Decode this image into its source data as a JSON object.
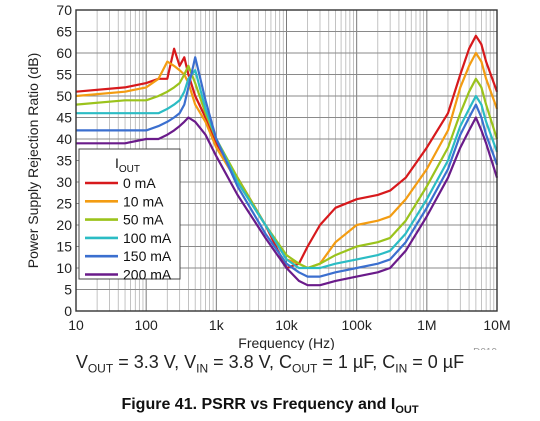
{
  "chart_data": {
    "type": "line",
    "x_scale": "log",
    "xlim": [
      10,
      10000000
    ],
    "ylim": [
      0,
      70
    ],
    "x_ticks": [
      "10",
      "100",
      "1k",
      "10k",
      "100k",
      "1M",
      "10M"
    ],
    "y_ticks": [
      "0",
      "5",
      "10",
      "15",
      "20",
      "25",
      "30",
      "35",
      "40",
      "45",
      "50",
      "55",
      "60",
      "65",
      "70"
    ],
    "xlabel": "Frequency (Hz)",
    "ylabel": "Power Supply Rejection Ratio (dB)",
    "grid": true,
    "legend_position": "left",
    "legend_title": "IOUT",
    "legend_title_main": "I",
    "legend_title_sub": "OUT",
    "code": "D019",
    "series": [
      {
        "name": "0 mA",
        "color": "#d7191c",
        "x": [
          10,
          50,
          100,
          150,
          200,
          250,
          300,
          350,
          400,
          500,
          700,
          1000,
          2000,
          5000,
          10000,
          15000,
          20000,
          30000,
          50000,
          100000,
          200000,
          300000,
          500000,
          1000000,
          2000000,
          3000000,
          4000000,
          5000000,
          6000000,
          7000000,
          10000000
        ],
        "y": [
          51,
          52,
          53,
          54,
          54,
          61,
          57,
          59,
          55,
          50,
          45,
          39,
          31,
          20,
          10,
          11,
          15,
          20,
          24,
          26,
          27,
          28,
          31,
          38,
          46,
          55,
          61,
          64,
          62,
          58,
          51
        ]
      },
      {
        "name": "10 mA",
        "color": "#f39c12",
        "x": [
          10,
          50,
          100,
          150,
          200,
          250,
          300,
          350,
          400,
          500,
          700,
          1000,
          2000,
          5000,
          10000,
          15000,
          20000,
          30000,
          50000,
          100000,
          200000,
          300000,
          500000,
          1000000,
          2000000,
          3000000,
          4000000,
          5000000,
          6000000,
          7000000,
          10000000
        ],
        "y": [
          50,
          51,
          52,
          54,
          58,
          57,
          56,
          55,
          53,
          48,
          44,
          38,
          30,
          20,
          12,
          11,
          10,
          11,
          16,
          20,
          21,
          22,
          26,
          33,
          42,
          52,
          57,
          60,
          58,
          54,
          47
        ]
      },
      {
        "name": "50 mA",
        "color": "#9bc31c",
        "x": [
          10,
          50,
          100,
          150,
          200,
          250,
          300,
          350,
          400,
          500,
          700,
          1000,
          2000,
          5000,
          10000,
          15000,
          20000,
          30000,
          50000,
          100000,
          200000,
          300000,
          500000,
          1000000,
          2000000,
          3000000,
          4000000,
          5000000,
          6000000,
          7000000,
          10000000
        ],
        "y": [
          48,
          49,
          49,
          50,
          51,
          52,
          53,
          55,
          57,
          53,
          46,
          40,
          31,
          20,
          13,
          11,
          10,
          11,
          13,
          15,
          16,
          17,
          21,
          29,
          38,
          46,
          51,
          54,
          52,
          48,
          40
        ]
      },
      {
        "name": "100 mA",
        "color": "#2bbcc4",
        "x": [
          10,
          50,
          100,
          150,
          200,
          250,
          300,
          350,
          400,
          500,
          700,
          1000,
          2000,
          5000,
          10000,
          15000,
          20000,
          30000,
          50000,
          100000,
          200000,
          300000,
          500000,
          1000000,
          2000000,
          3000000,
          4000000,
          5000000,
          6000000,
          7000000,
          10000000
        ],
        "y": [
          46,
          46,
          46,
          46,
          47,
          48,
          49,
          51,
          54,
          56,
          47,
          40,
          30,
          20,
          12,
          10,
          10,
          10,
          11,
          12,
          13,
          14,
          18,
          26,
          35,
          43,
          47,
          50,
          48,
          44,
          37
        ]
      },
      {
        "name": "150 mA",
        "color": "#3b6fcf",
        "x": [
          10,
          50,
          100,
          150,
          200,
          250,
          300,
          350,
          400,
          500,
          700,
          1000,
          2000,
          5000,
          10000,
          15000,
          20000,
          30000,
          50000,
          100000,
          200000,
          300000,
          500000,
          1000000,
          2000000,
          3000000,
          4000000,
          5000000,
          6000000,
          7000000,
          10000000
        ],
        "y": [
          42,
          42,
          42,
          43,
          44,
          45,
          46,
          48,
          52,
          59,
          49,
          40,
          29,
          18,
          11,
          9,
          8,
          8,
          9,
          10,
          11,
          12,
          16,
          24,
          33,
          41,
          45,
          48,
          45,
          41,
          34
        ]
      },
      {
        "name": "200 mA",
        "color": "#6a1b8a",
        "x": [
          10,
          50,
          100,
          150,
          200,
          250,
          300,
          350,
          400,
          500,
          700,
          1000,
          2000,
          5000,
          10000,
          15000,
          20000,
          30000,
          50000,
          100000,
          200000,
          300000,
          500000,
          1000000,
          2000000,
          3000000,
          4000000,
          5000000,
          6000000,
          7000000,
          10000000
        ],
        "y": [
          39,
          39,
          40,
          40,
          41,
          42,
          43,
          44,
          45,
          44,
          41,
          36,
          27,
          17,
          10,
          7,
          6,
          6,
          7,
          8,
          9,
          10,
          14,
          22,
          31,
          38,
          42,
          45,
          42,
          39,
          31
        ]
      }
    ]
  },
  "conditions": {
    "vout_main": "V",
    "vout_sub": "OUT",
    "vout_val": " = 3.3 V, ",
    "vin_main": "V",
    "vin_sub": "IN",
    "vin_val": " = 3.8 V, ",
    "cout_main": "C",
    "cout_sub": "OUT",
    "cout_val": " = 1 µF, ",
    "cin_main": "C",
    "cin_sub": "IN",
    "cin_val": " = 0 µF"
  },
  "caption": {
    "main": "Figure 41. PSRR vs Frequency and I",
    "sub": "OUT"
  }
}
